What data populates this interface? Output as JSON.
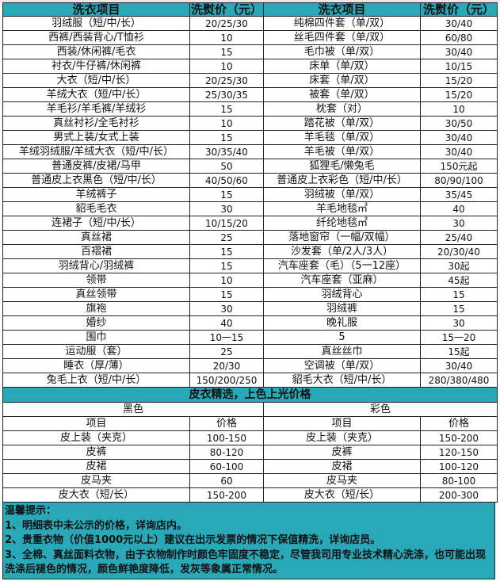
{
  "header": {
    "item_label": "洗衣项目",
    "price_label": "洗熨价（元）"
  },
  "rows": [
    [
      "羽绒服（短/中/长）",
      "20/25/30",
      "纯棉四件套（单/双）",
      "30/40"
    ],
    [
      "西裤/西装背心/T恤衫",
      "10",
      "丝毛四件套（单/双）",
      "60/80"
    ],
    [
      "西装/休闲裤/毛衣",
      "15",
      "毛巾被（单/双）",
      "30/40"
    ],
    [
      "衬衣/牛仔裤/休闲裤",
      "10",
      "床单（单/双）",
      "10/15"
    ],
    [
      "大衣（短/中/长）",
      "20/25/30",
      "床套（单/双）",
      "15/20"
    ],
    [
      "羊绒大衣（短/中/长）",
      "25/30/35",
      "被套（单/双）",
      "15/20"
    ],
    [
      "羊毛衫/羊毛裤/羊绒衫",
      "15",
      "枕套（对）",
      "10"
    ],
    [
      "真丝衬衫/全毛衬衫",
      "10",
      "踏花被（单/双）",
      "30/50"
    ],
    [
      "男式上装/女式上装",
      "15",
      "羊毛毯（单/双）",
      "30/40"
    ],
    [
      "羊绒羽绒服/羊绒大衣（短/中/长）",
      "30/35/40",
      "羊毛被（单/双）",
      "30/40"
    ],
    [
      "普通皮裤/皮裙/马甲",
      "50",
      "狐狸毛/懒兔毛",
      "150元起"
    ],
    [
      "普通皮上衣黑色（短/中/长）",
      "40/50/60",
      "普通皮上衣彩色（短/中/长）",
      "80/90/100"
    ],
    [
      "羊绒裤子",
      "15",
      "羽绒被（单/双）",
      "35/45"
    ],
    [
      "貂毛毛衣",
      "30",
      "羊毛地毯㎡",
      "40"
    ],
    [
      "连裙子（短/中/长）",
      "10/15/20",
      "纤纶地毯㎡",
      "30"
    ],
    [
      "真丝裙",
      "25",
      "落地窗帘（一幅/双幅）",
      "25/40"
    ],
    [
      "百褶裙",
      "15",
      "沙发套（单/2人/3人）",
      "20/30/40"
    ],
    [
      "羽绒背心/羽绒裤",
      "15",
      "汽车座套（毛）（5一12座）",
      "30起"
    ],
    [
      "领带",
      "10",
      "汽车座套（亚麻）",
      "45起"
    ],
    [
      "真丝领带",
      "15",
      "羽绒背心",
      "15"
    ],
    [
      "旗袍",
      "30",
      "羽绒裤",
      "15"
    ],
    [
      "婚纱",
      "40",
      "晚礼服",
      "30"
    ],
    [
      "围巾",
      "10一15",
      "5",
      "15一20"
    ],
    [
      "运动服（套）",
      "25",
      "真丝丝巾",
      "15起"
    ],
    [
      "睡衣（厚/薄）",
      "20/30",
      "空调被（单/双）",
      "30/40"
    ],
    [
      "兔毛上衣（短/中/长）",
      "150/200/250",
      "貂毛大衣（短/中/长）",
      "280/380/480"
    ]
  ],
  "leather": {
    "title": "皮衣精选，上色上光价格",
    "black_label": "黑色",
    "color_label": "彩色",
    "item_label": "项目",
    "price_label": "价格",
    "rows": [
      [
        "皮上装（夹克）",
        "100-150",
        "皮上装（夹克）",
        "150-200"
      ],
      [
        "皮裤",
        "80-120",
        "皮裤",
        "120-150"
      ],
      [
        "皮裙",
        "60-100",
        "皮裙",
        "100-120"
      ],
      [
        "皮马夹",
        "60",
        "皮马夹",
        "80-100"
      ],
      [
        "皮大衣（短/长）",
        "150-200",
        "皮大衣（短/长）",
        "200-300"
      ]
    ]
  },
  "notes": {
    "title": "温馨提示：",
    "items": [
      "1、明细表中未公示的价格，详询店内。",
      "2、贵重衣物（价值1000元以上）建议在出示发票的情况下保值精洗，详询店员。",
      "3、全棉、真丝面料衣物，由于衣物制作时颜色牢固度不稳定，尽管我司用专业技术精心洗涤，也可能出现洗涤后褪色的情况，颜色鲜艳度降低，发灰等象属正常情况。"
    ]
  },
  "colors": {
    "accent": "#29a8b8",
    "border": "#222222"
  }
}
